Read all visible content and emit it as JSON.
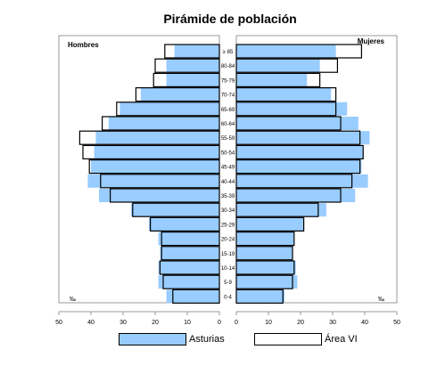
{
  "chart_data": {
    "type": "bar",
    "orientation": "population-pyramid",
    "title": "Pirámide de población",
    "left_label": "Hombres",
    "right_label": "Mujeres",
    "unit": "‰",
    "categories": [
      "85",
      "80-84",
      "75-79",
      "70-74",
      "65-69",
      "60-64",
      "55-59",
      "50-54",
      "45-49",
      "40-44",
      "35-39",
      "30-34",
      "25-29",
      "20-24",
      "15-19",
      "10-14",
      "5-9",
      "0-4"
    ],
    "category_labels": [
      "≥ 85",
      "80-84",
      "75-79",
      "70-74",
      "65-69",
      "60-64",
      "55-59",
      "50-54",
      "45-49",
      "40-44",
      "35-39",
      "30-34",
      "25-29",
      "20-24",
      "15-19",
      "10-14",
      "5-9",
      "0-4"
    ],
    "series": [
      {
        "name": "Asturias",
        "style": "filled",
        "men": [
          14,
          16.5,
          16.5,
          24.5,
          31,
          34.5,
          38.5,
          39,
          40,
          41,
          37.5,
          27.5,
          22,
          19,
          18.5,
          19,
          19,
          16.5
        ],
        "women": [
          31,
          26,
          22,
          29.5,
          34.5,
          38,
          41.5,
          39.5,
          39,
          41,
          37,
          28,
          21,
          18,
          17.5,
          18.5,
          19,
          15
        ]
      },
      {
        "name": "Área VI",
        "style": "outline",
        "men": [
          17,
          20,
          20.5,
          26,
          32,
          36.5,
          43.5,
          42.5,
          40.5,
          37,
          34,
          27,
          21.5,
          18,
          18,
          18.5,
          17.5,
          14.5
        ],
        "women": [
          39,
          31.5,
          26,
          31,
          31,
          32.5,
          38.5,
          39.5,
          38.5,
          36,
          32.5,
          25.5,
          21,
          18,
          17.5,
          18,
          17.5,
          14.5
        ]
      }
    ],
    "xlim": [
      0,
      50
    ],
    "xticks": [
      50,
      40,
      30,
      20,
      10,
      0
    ],
    "legend": "bottom-center",
    "grid": false,
    "colors": {
      "fill": "#99ccff",
      "outline": "#000000",
      "frame": "#999999"
    }
  }
}
